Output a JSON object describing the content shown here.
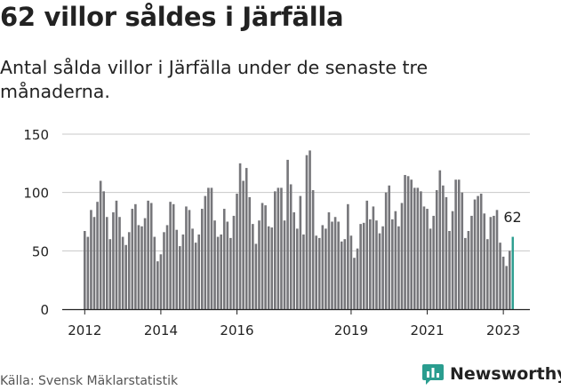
{
  "title": "62 villor såldes i Järfälla",
  "subtitle": "Antal sålda villor i Järfälla under de senaste tre månaderna.",
  "source": "Källa: Svensk Mäklarstatistik",
  "brand": {
    "name": "Newsworthy",
    "icon": "newsworthy-logo-icon"
  },
  "colors": {
    "bar": "#76767a",
    "highlight": "#2a9d8f",
    "text": "#222222",
    "brand": "#2a9d8f"
  },
  "chart_data": {
    "type": "bar",
    "title": "62 villor såldes i Järfälla",
    "xlabel": "",
    "ylabel": "",
    "ylim": [
      0,
      150
    ],
    "yticks": [
      0,
      50,
      100,
      150
    ],
    "xticks": [
      {
        "label": "2012",
        "index": 0
      },
      {
        "label": "2014",
        "index": 24
      },
      {
        "label": "2016",
        "index": 48
      },
      {
        "label": "2019",
        "index": 84
      },
      {
        "label": "2021",
        "index": 108
      },
      {
        "label": "2023",
        "index": 132
      }
    ],
    "start": "2012-01",
    "values": [
      67,
      62,
      85,
      79,
      92,
      110,
      101,
      79,
      60,
      83,
      93,
      79,
      62,
      55,
      66,
      86,
      90,
      72,
      71,
      78,
      93,
      91,
      62,
      41,
      47,
      66,
      72,
      92,
      90,
      68,
      54,
      64,
      88,
      85,
      69,
      57,
      64,
      86,
      97,
      104,
      104,
      76,
      62,
      64,
      86,
      75,
      61,
      80,
      99,
      125,
      110,
      121,
      96,
      73,
      56,
      76,
      91,
      89,
      71,
      70,
      101,
      104,
      104,
      76,
      128,
      107,
      83,
      69,
      97,
      64,
      132,
      136,
      102,
      63,
      61,
      72,
      69,
      83,
      75,
      79,
      75,
      58,
      60,
      90,
      63,
      44,
      52,
      73,
      74,
      93,
      77,
      88,
      76,
      65,
      71,
      100,
      106,
      77,
      84,
      71,
      91,
      115,
      114,
      111,
      104,
      104,
      101,
      88,
      86,
      69,
      80,
      102,
      119,
      106,
      96,
      67,
      84,
      111,
      111,
      100,
      61,
      67,
      80,
      94,
      97,
      99,
      82,
      60,
      79,
      80,
      85,
      57,
      45,
      37,
      50,
      62
    ],
    "highlight_index": 135,
    "highlight_label": "62"
  }
}
